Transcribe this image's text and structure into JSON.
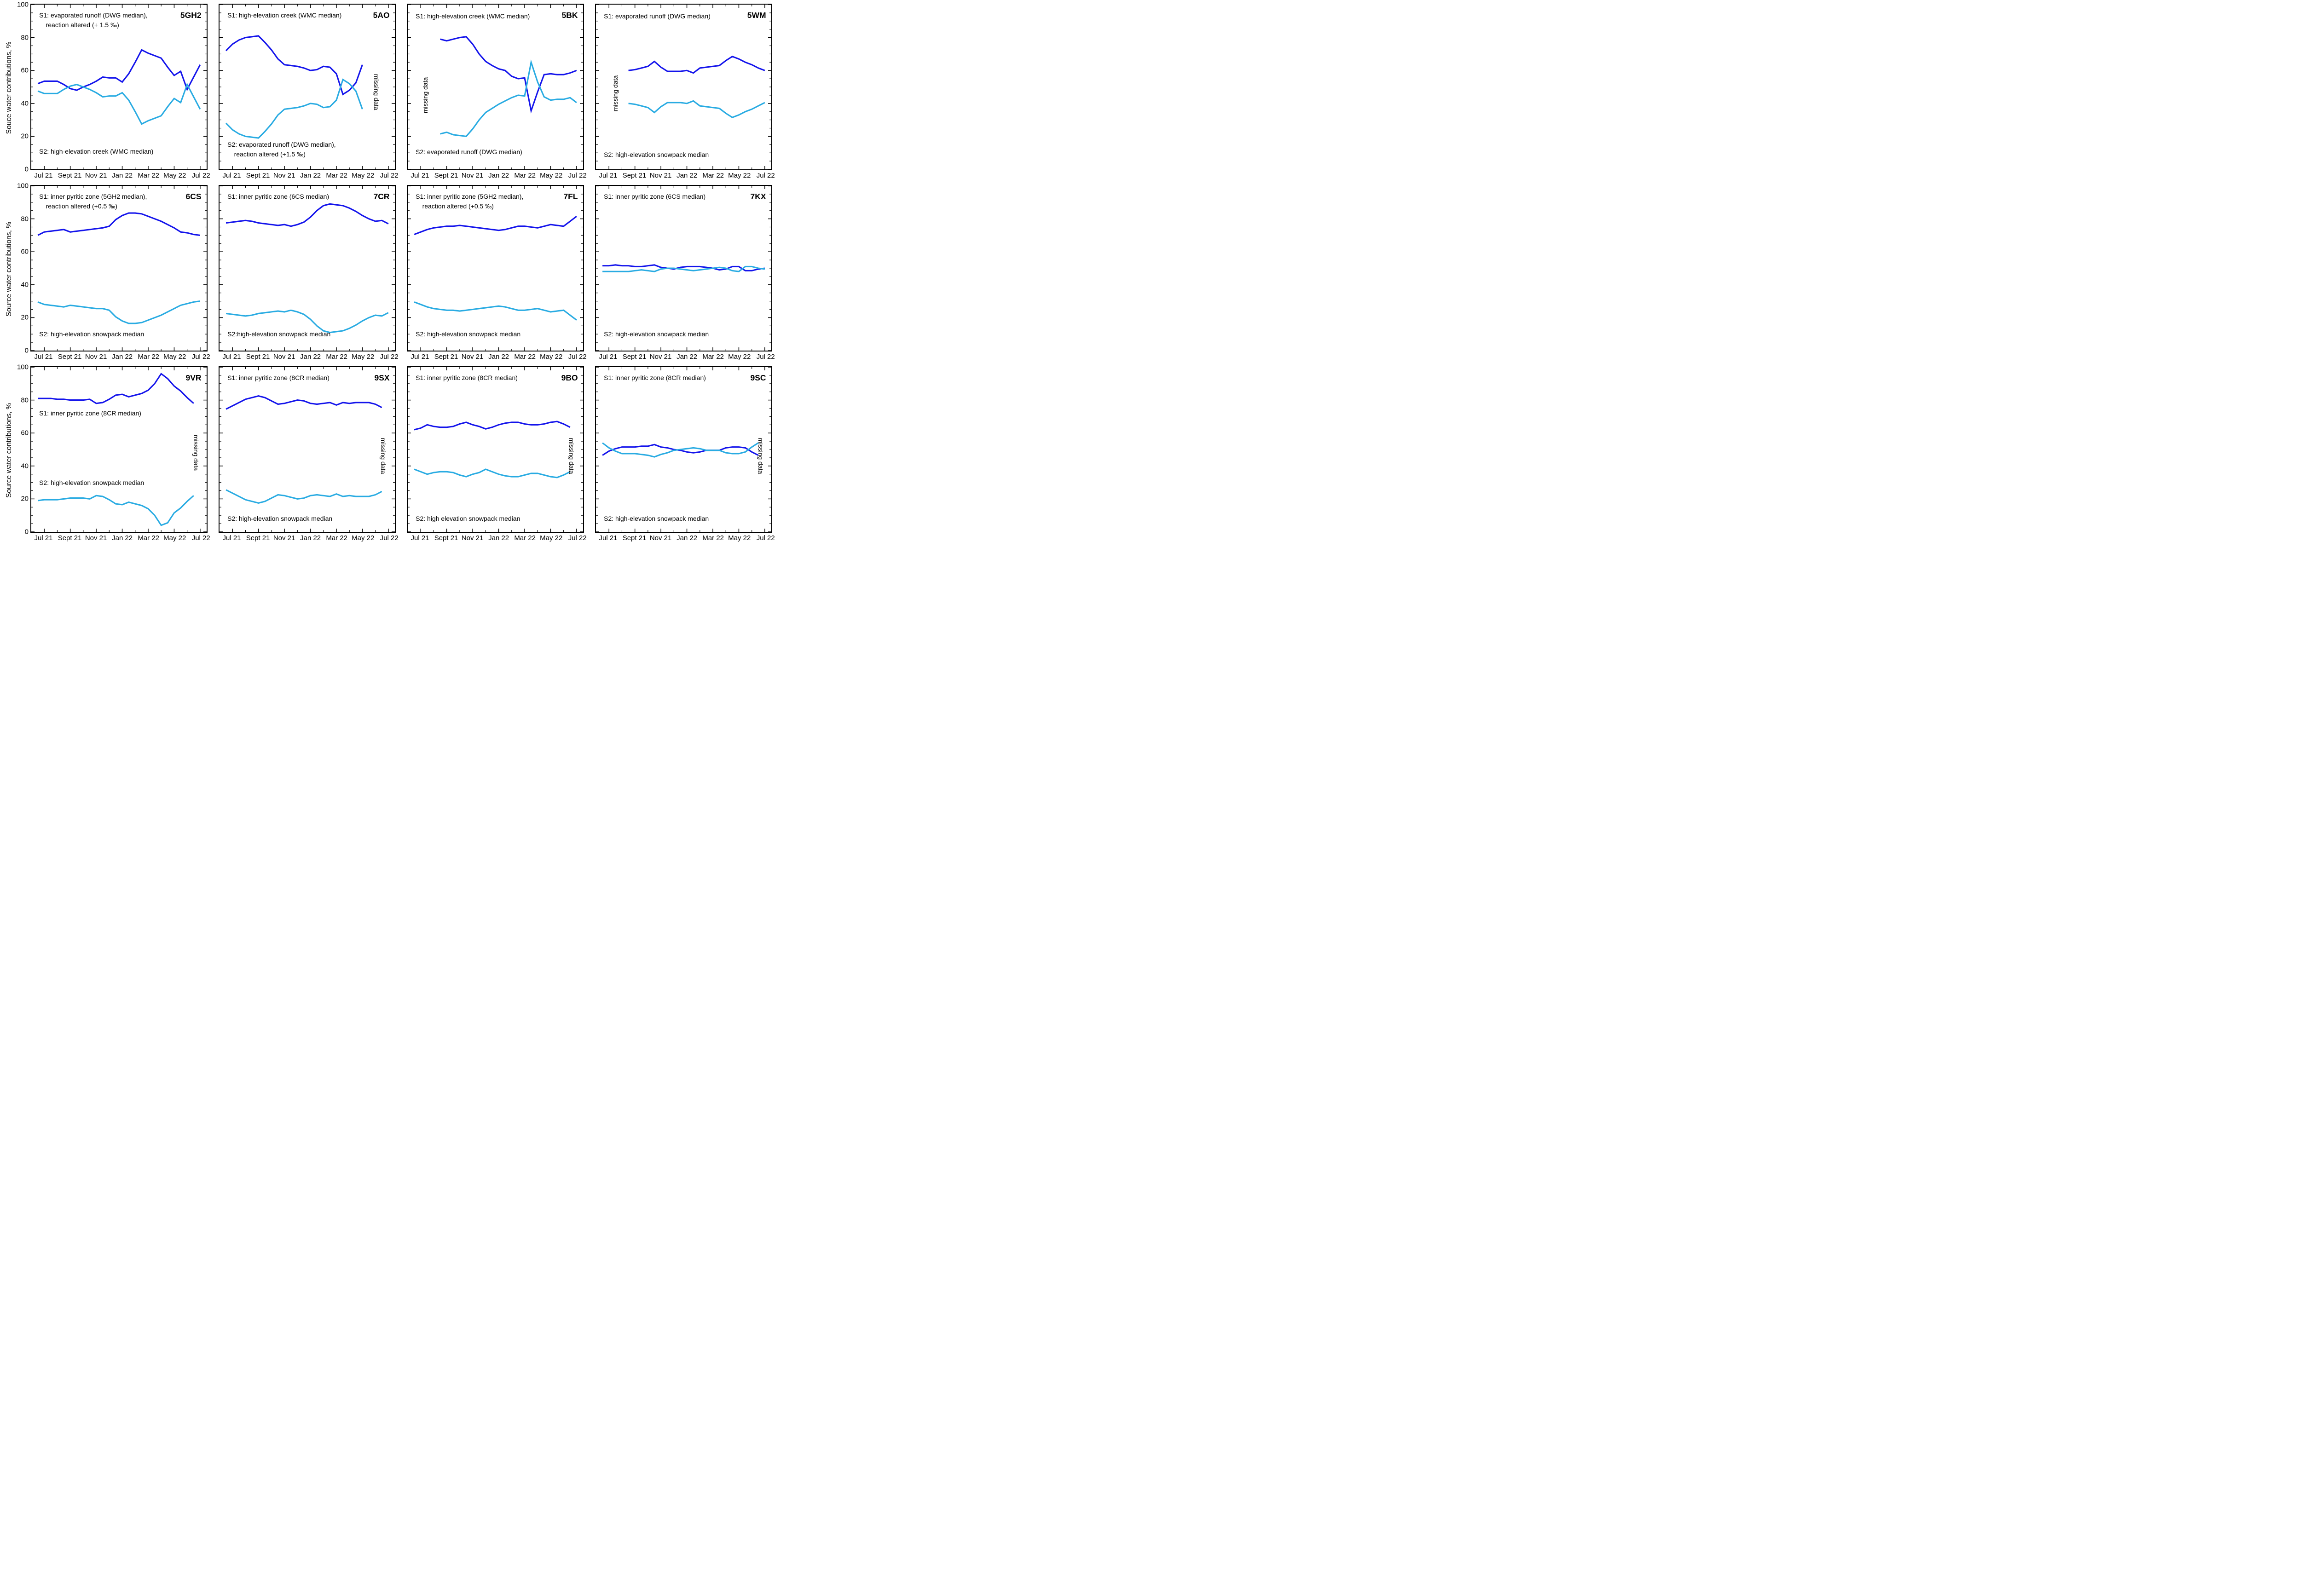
{
  "colors": {
    "s1_dark_blue": "#1414eb",
    "s2_light_blue": "#29abe2",
    "axis_black": "#000000"
  },
  "axes": {
    "x_tick_labels": [
      "Jul 21",
      "Sept 21",
      "Nov 21",
      "Jan 22",
      "Mar 22",
      "May 22",
      "Jul 22"
    ],
    "x_major_months": [
      0,
      2,
      4,
      6,
      8,
      10,
      12
    ],
    "x_minor_months": [
      1,
      3,
      5,
      7,
      9,
      11
    ],
    "x_domain": [
      -1,
      12.5
    ],
    "y_tick_labels": [
      "0",
      "20",
      "40",
      "60",
      "80",
      "100"
    ],
    "y_major": [
      0,
      20,
      40,
      60,
      80,
      100
    ],
    "y_minor_step": 5,
    "ylim": [
      0,
      100
    ],
    "row_ylabels": [
      "Souce water contributions, %",
      "Source water contributions, %",
      "Source water contributions, %"
    ],
    "grid": "off",
    "legend": "none"
  },
  "chart_data": [
    {
      "type": "line",
      "code": "5GH2",
      "s1_label_lines": [
        "S1: evaporated runoff (DWG median),",
        "reaction altered (+ 1.5 ‰)"
      ],
      "s2_label_lines": [
        "S2: high-elevation creek (WMC median)"
      ],
      "s1_pos": {
        "left": 4.5,
        "top": 4
      },
      "s2_pos": {
        "left": 4.5,
        "top": 86.5
      },
      "missing": null,
      "x_start": -0.5,
      "x_step": 0.5,
      "s1": [
        52,
        53.5,
        53.5,
        53.5,
        51.5,
        49,
        48,
        50,
        51.5,
        53.5,
        56,
        55.5,
        55.5,
        53,
        58,
        65,
        72.5,
        70.5,
        69,
        67.5,
        62,
        57,
        59.5,
        48.5,
        56,
        63.5
      ],
      "s2": [
        47.5,
        46,
        46,
        46,
        48.5,
        50.5,
        51.5,
        50,
        48.5,
        46.5,
        44,
        44.5,
        44.5,
        46.5,
        42,
        35,
        27.5,
        29.5,
        31,
        32.5,
        38,
        43,
        40.5,
        51.5,
        44,
        36.5
      ]
    },
    {
      "type": "line",
      "code": "5AO",
      "s1_label_lines": [
        "S1: high-elevation creek (WMC median)"
      ],
      "s2_label_lines": [
        "S2: evaporated runoff (DWG median),",
        "reaction altered (+1.5 ‰)"
      ],
      "s1_pos": {
        "left": 4.5,
        "top": 4
      },
      "s2_pos": {
        "left": 4.5,
        "top": 82.5
      },
      "missing": {
        "text": "missing data",
        "x_pct": 89.5,
        "y_pct": 53,
        "rotate": 90
      },
      "x_start": -0.5,
      "x_step": 0.5,
      "s1": [
        72,
        76,
        78.5,
        80,
        80.5,
        81,
        77,
        72.5,
        67,
        63.5,
        63,
        62.5,
        61.5,
        60,
        60.5,
        62.5,
        62,
        58,
        45.5,
        48,
        52.5,
        63.5
      ],
      "s2": [
        28,
        24,
        21.5,
        20,
        19.5,
        19,
        23,
        27.5,
        33,
        36.5,
        37,
        37.5,
        38.5,
        40,
        39.5,
        37.5,
        38,
        42,
        54.5,
        52,
        47.5,
        36.5
      ]
    },
    {
      "type": "line",
      "code": "5BK",
      "s1_label_lines": [
        "S1: high-elevation creek (WMC median)"
      ],
      "s2_label_lines": [
        "S2: evaporated runoff (DWG median)"
      ],
      "s1_pos": {
        "left": 4.5,
        "top": 4.5
      },
      "s2_pos": {
        "left": 4.5,
        "top": 87
      },
      "missing": {
        "text": "missing data",
        "x_pct": 10,
        "y_pct": 55,
        "rotate": -90
      },
      "x_start": 1.5,
      "x_step": 0.5,
      "s1": [
        79,
        78,
        79,
        80,
        80.5,
        76,
        70,
        65.5,
        63,
        61,
        60,
        56.5,
        55,
        55.5,
        35.5,
        47,
        57.5,
        58,
        57.5,
        57.5,
        58.5,
        60
      ],
      "s2": [
        21.5,
        22.5,
        21,
        20.5,
        20,
        24.5,
        30,
        34.5,
        37,
        39.5,
        41.5,
        43.5,
        45,
        44.5,
        65,
        53,
        44,
        42,
        42.5,
        42.5,
        43.5,
        40.5
      ]
    },
    {
      "type": "line",
      "code": "5WM",
      "s1_label_lines": [
        "S1: evaporated runoff (DWG median)"
      ],
      "s2_label_lines": [
        "S2: high-elevation snowpack median"
      ],
      "s1_pos": {
        "left": 4.5,
        "top": 4.5
      },
      "s2_pos": {
        "left": 4.5,
        "top": 88.5
      },
      "missing": {
        "text": "missing data",
        "x_pct": 11,
        "y_pct": 54,
        "rotate": -90
      },
      "x_start": 1.5,
      "x_step": 0.5,
      "s1": [
        60,
        60.5,
        61.5,
        62.5,
        65.5,
        62,
        59.5,
        59.5,
        59.5,
        60,
        58.5,
        61.5,
        62,
        62.5,
        63,
        66,
        68.5,
        67,
        65,
        63.5,
        61.5,
        60
      ],
      "s2": [
        40,
        39.5,
        38.5,
        37.5,
        34.5,
        38,
        40.5,
        40.5,
        40.5,
        40,
        41.5,
        38.5,
        38,
        37.5,
        37,
        34,
        31.5,
        33,
        35,
        36.5,
        38.5,
        40.5
      ]
    },
    {
      "type": "line",
      "code": "6CS",
      "s1_label_lines": [
        "S1: inner pyritic zone (5GH2 median),",
        "reaction altered (+0.5 ‰)"
      ],
      "s2_label_lines": [
        "S2: high-elevation snowpack median"
      ],
      "s1_pos": {
        "left": 4.5,
        "top": 4
      },
      "s2_pos": {
        "left": 4.5,
        "top": 87.5
      },
      "missing": null,
      "x_start": -0.5,
      "x_step": 0.5,
      "s1": [
        70,
        72,
        72.5,
        73,
        73.5,
        72,
        72.5,
        73,
        73.5,
        74,
        74.5,
        75.5,
        79.5,
        82,
        83.5,
        83.5,
        83,
        81.5,
        80,
        78.5,
        76.5,
        74.5,
        72,
        71.5,
        70.5,
        70
      ],
      "s2": [
        29.5,
        28,
        27.5,
        27,
        26.5,
        27.5,
        27,
        26.5,
        26,
        25.5,
        25.5,
        24.5,
        20.5,
        18,
        16.5,
        16.5,
        17,
        18.5,
        20,
        21.5,
        23.5,
        25.5,
        27.5,
        28.5,
        29.5,
        30
      ]
    },
    {
      "type": "line",
      "code": "7CR",
      "s1_label_lines": [
        "S1: inner pyritic zone (6CS median)"
      ],
      "s2_label_lines": [
        "S2:high-elevation snowpack median"
      ],
      "s1_pos": {
        "left": 4.5,
        "top": 4
      },
      "s2_pos": {
        "left": 4.5,
        "top": 87.5
      },
      "missing": null,
      "x_start": -0.5,
      "x_step": 0.5,
      "s1": [
        77.5,
        78,
        78.5,
        79,
        78.5,
        77.5,
        77,
        76.5,
        76,
        76.5,
        75.5,
        76.5,
        78,
        81,
        85,
        88,
        89,
        88.5,
        88,
        86.5,
        84.5,
        82,
        80,
        78.5,
        79,
        77
      ],
      "s2": [
        22.5,
        22,
        21.5,
        21,
        21.5,
        22.5,
        23,
        23.5,
        24,
        23.5,
        24.5,
        23.5,
        22,
        19,
        15,
        12,
        11,
        11.5,
        12,
        13.5,
        15.5,
        18,
        20,
        21.5,
        21,
        23
      ]
    },
    {
      "type": "line",
      "code": "7FL",
      "s1_label_lines": [
        "S1: inner pyritic zone (5GH2 median),",
        "reaction altered (+0.5 ‰)"
      ],
      "s2_label_lines": [
        "S2: high-elevation snowpack median"
      ],
      "s1_pos": {
        "left": 4.5,
        "top": 4
      },
      "s2_pos": {
        "left": 4.5,
        "top": 87.5
      },
      "missing": null,
      "x_start": -0.5,
      "x_step": 0.5,
      "s1": [
        70.5,
        72,
        73.5,
        74.5,
        75,
        75.5,
        75.5,
        76,
        75.5,
        75,
        74.5,
        74,
        73.5,
        73,
        73.5,
        74.5,
        75.5,
        75.5,
        75,
        74.5,
        75.5,
        76.5,
        76,
        75.5,
        78.5,
        81.5
      ],
      "s2": [
        29.5,
        28,
        26.5,
        25.5,
        25,
        24.5,
        24.5,
        24,
        24.5,
        25,
        25.5,
        26,
        26.5,
        27,
        26.5,
        25.5,
        24.5,
        24.5,
        25,
        25.5,
        24.5,
        23.5,
        24,
        24.5,
        21.5,
        18.5
      ]
    },
    {
      "type": "line",
      "code": "7KX",
      "s1_label_lines": [
        "S1: inner pyritic zone (6CS median)"
      ],
      "s2_label_lines": [
        "S2: high-elevation snowpack median"
      ],
      "s1_pos": {
        "left": 4.5,
        "top": 4
      },
      "s2_pos": {
        "left": 4.5,
        "top": 87.5
      },
      "missing": null,
      "x_start": -0.5,
      "x_step": 0.5,
      "s1": [
        51.5,
        51.5,
        52,
        51.5,
        51.5,
        51,
        51,
        51.5,
        52,
        50.5,
        50,
        49.5,
        50.5,
        51,
        51,
        51,
        50.5,
        50,
        49,
        49.5,
        51,
        51,
        48.5,
        48.5,
        49.5,
        50
      ],
      "s2": [
        48,
        48,
        48,
        48,
        48,
        48.5,
        49,
        48.5,
        48,
        49.5,
        50,
        50,
        49.5,
        49,
        48.5,
        49,
        49.5,
        50,
        50.5,
        50,
        48.5,
        48,
        51,
        51,
        50,
        49.5
      ]
    },
    {
      "type": "line",
      "code": "9VR",
      "s1_label_lines": [
        "S1: inner pyritic zone (8CR median)"
      ],
      "s2_label_lines": [
        "S2: high-elevation snowpack median"
      ],
      "s1_pos": {
        "left": 4.5,
        "top": 25.5
      },
      "s2_pos": {
        "left": 4.5,
        "top": 67.5
      },
      "missing": {
        "text": "missing data",
        "x_pct": 94,
        "y_pct": 52,
        "rotate": 90
      },
      "x_start": -0.5,
      "x_step": 0.5,
      "s1": [
        81,
        81,
        81,
        80.5,
        80.5,
        80,
        80,
        80,
        80.5,
        78,
        78.5,
        80.5,
        83,
        83.5,
        82,
        83,
        84,
        86,
        90,
        96,
        93,
        88.5,
        85.5,
        81.5,
        78
      ],
      "s2": [
        19,
        19.5,
        19.5,
        19.5,
        20,
        20.5,
        20.5,
        20.5,
        20,
        22,
        21.5,
        19.5,
        17,
        16.5,
        18,
        17,
        16,
        14,
        10,
        4,
        5.5,
        11.5,
        14.5,
        18.5,
        22
      ]
    },
    {
      "type": "line",
      "code": "9SX",
      "s1_label_lines": [
        "S1: inner pyritic zone (8CR median)"
      ],
      "s2_label_lines": [
        "S2: high-elevation snowpack median"
      ],
      "s1_pos": {
        "left": 4.5,
        "top": 4
      },
      "s2_pos": {
        "left": 4.5,
        "top": 89.5
      },
      "missing": {
        "text": "missing data",
        "x_pct": 93.5,
        "y_pct": 54,
        "rotate": 90
      },
      "x_start": -0.5,
      "x_step": 0.5,
      "s1": [
        74.5,
        76.5,
        78.5,
        80.5,
        81.5,
        82.5,
        81.5,
        79.5,
        77.5,
        78,
        79,
        80,
        79.5,
        78,
        77.5,
        78,
        78.5,
        77,
        78.5,
        78,
        78.5,
        78.5,
        78.5,
        77.5,
        75.5
      ],
      "s2": [
        25.5,
        23.5,
        21.5,
        19.5,
        18.5,
        17.5,
        18.5,
        20.5,
        22.5,
        22,
        21,
        20,
        20.5,
        22,
        22.5,
        22,
        21.5,
        23,
        21.5,
        22,
        21.5,
        21.5,
        21.5,
        22.5,
        24.5
      ]
    },
    {
      "type": "line",
      "code": "9BO",
      "s1_label_lines": [
        "S1: inner pyritic zone (8CR median)"
      ],
      "s2_label_lines": [
        "S2: high elevation snowpack median"
      ],
      "s1_pos": {
        "left": 4.5,
        "top": 4
      },
      "s2_pos": {
        "left": 4.5,
        "top": 89.5
      },
      "missing": {
        "text": "missing data",
        "x_pct": 93.5,
        "y_pct": 54,
        "rotate": 90
      },
      "x_start": -0.5,
      "x_step": 0.5,
      "s1": [
        62,
        63,
        65,
        64,
        63.5,
        63.5,
        64,
        65.5,
        66.5,
        65,
        64,
        62.5,
        63.5,
        65,
        66,
        66.5,
        66.5,
        65.5,
        65,
        65,
        65.5,
        66.5,
        67,
        65.5,
        63.5
      ],
      "s2": [
        38,
        36.5,
        35,
        36,
        36.5,
        36.5,
        36,
        34.5,
        33.5,
        35,
        36,
        38,
        36.5,
        35,
        34,
        33.5,
        33.5,
        34.5,
        35.5,
        35.5,
        34.5,
        33.5,
        33,
        34.5,
        36.5
      ]
    },
    {
      "type": "line",
      "code": "9SC",
      "s1_label_lines": [
        "S1: inner pyritic zone (8CR median)"
      ],
      "s2_label_lines": [
        "S2: high-elevation snowpack median"
      ],
      "s1_pos": {
        "left": 4.5,
        "top": 4
      },
      "s2_pos": {
        "left": 4.5,
        "top": 89.5
      },
      "missing": {
        "text": "missing data",
        "x_pct": 94,
        "y_pct": 54,
        "rotate": 90
      },
      "x_start": -0.5,
      "x_step": 0.5,
      "s1": [
        46.5,
        49,
        50.5,
        51.5,
        51.5,
        51.5,
        52,
        52,
        53,
        51.5,
        51,
        50,
        49.5,
        48.5,
        48,
        48.5,
        49.5,
        49.5,
        49.5,
        51,
        51.5,
        51.5,
        51,
        48.5,
        46.5
      ],
      "s2": [
        54,
        51,
        49,
        47.5,
        47.5,
        47.5,
        47,
        46.5,
        45.5,
        47,
        48,
        49.5,
        50,
        50.5,
        51,
        50.5,
        49.5,
        49.5,
        49.5,
        48,
        47.5,
        47.5,
        48.5,
        51.5,
        54
      ]
    }
  ]
}
